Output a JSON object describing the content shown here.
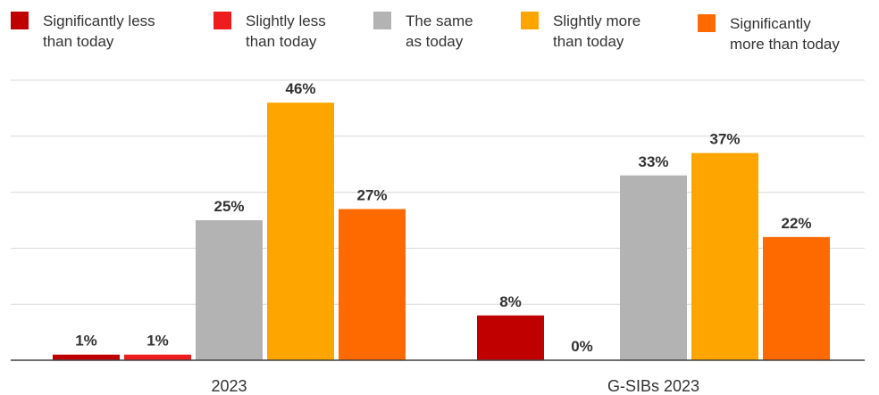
{
  "chart_data": {
    "type": "bar",
    "categories": [
      "2023",
      "G-SIBs 2023"
    ],
    "series": [
      {
        "name": "Significantly less than today",
        "name_lines": [
          "Significantly less",
          "than today"
        ],
        "color": "#c00000",
        "values": [
          1,
          8
        ],
        "labels": [
          "1%",
          "8%"
        ]
      },
      {
        "name": "Slightly less than today",
        "name_lines": [
          "Slightly less",
          "than today"
        ],
        "color": "#ee1c1c",
        "values": [
          1,
          0
        ],
        "labels": [
          "1%",
          "0%"
        ]
      },
      {
        "name": "The same as today",
        "name_lines": [
          "The same",
          "as today"
        ],
        "color": "#b3b3b3",
        "values": [
          25,
          33
        ],
        "labels": [
          "25%",
          "33%"
        ]
      },
      {
        "name": "Slightly more than today",
        "name_lines": [
          "Slightly more",
          "than today"
        ],
        "color": "#ffa500",
        "values": [
          46,
          37
        ],
        "labels": [
          "46%",
          "37%"
        ]
      },
      {
        "name": "Significantly more than today",
        "name_lines": [
          "Significantly",
          "more than today"
        ],
        "color": "#ff6a00",
        "values": [
          27,
          22
        ],
        "labels": [
          "27%",
          "22%"
        ]
      }
    ],
    "ylim": [
      0,
      50
    ],
    "grid": true,
    "legend_position": "top",
    "title": "",
    "xlabel": "",
    "ylabel": ""
  }
}
